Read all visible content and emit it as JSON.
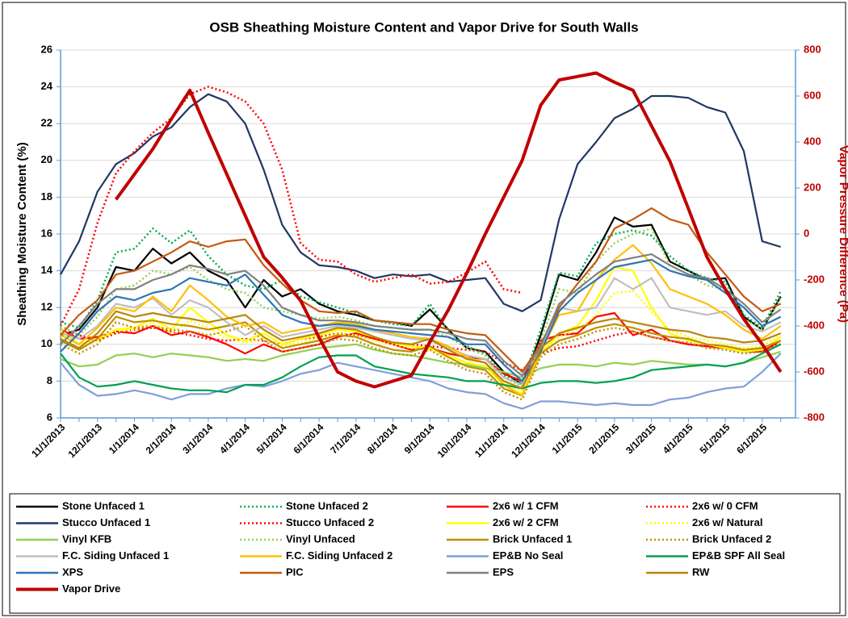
{
  "chart_data": {
    "type": "line",
    "title": "OSB Sheathing Moisture Content and Vapor Drive for South Walls",
    "y_label": "Sheathing Moisture Content (%)",
    "y2_label": "Vapor Pressure Difference (Pa)",
    "categories": [
      "11/1/2013",
      null,
      "12/1/2013",
      null,
      "1/1/2014",
      null,
      "2/1/2014",
      null,
      "3/1/2014",
      null,
      "4/1/2014",
      null,
      "5/1/2014",
      null,
      "6/1/2014",
      null,
      "7/1/2014",
      null,
      "8/1/2014",
      null,
      "9/1/2014",
      null,
      "10/1/2014",
      null,
      "11/1/2014",
      null,
      "12/1/2014",
      null,
      "1/1/2015",
      null,
      "2/1/2015",
      null,
      "3/1/2015",
      null,
      "4/1/2015",
      null,
      "5/1/2015",
      null,
      "6/1/2015",
      null
    ],
    "ylim": [
      6,
      26
    ],
    "yticks": [
      6,
      8,
      10,
      12,
      14,
      16,
      18,
      20,
      22,
      24,
      26
    ],
    "y2lim": [
      -800,
      800
    ],
    "y2ticks": [
      -800,
      -600,
      -400,
      -200,
      0,
      200,
      400,
      600,
      800
    ],
    "grid": true,
    "legend": "bottom",
    "series": [
      {
        "name": "Stone Unfaced 1",
        "color": "#000000",
        "dash": false,
        "values": [
          10.5,
          10.8,
          12.0,
          14.2,
          14.0,
          15.2,
          14.4,
          15.0,
          14.0,
          13.5,
          12.0,
          13.5,
          12.6,
          13.0,
          12.2,
          11.8,
          11.6,
          11.3,
          11.2,
          11.0,
          11.9,
          10.8,
          9.8,
          9.6,
          8.5,
          7.8,
          10.5,
          13.8,
          13.5,
          15.0,
          16.9,
          16.4,
          16.5,
          14.5,
          14.0,
          13.5,
          13.6,
          11.5,
          10.8,
          12.6
        ]
      },
      {
        "name": "Stone Unfaced 2",
        "color": "#00b050",
        "dash": true,
        "values": [
          11.2,
          10.9,
          12.4,
          15.0,
          15.2,
          16.3,
          15.5,
          16.2,
          14.8,
          13.8,
          13.2,
          13.0,
          13.5,
          12.6,
          12.3,
          12.0,
          11.7,
          11.3,
          11.1,
          11.0,
          12.2,
          10.7,
          9.9,
          9.5,
          8.3,
          7.9,
          10.8,
          13.9,
          13.7,
          15.5,
          16.0,
          16.2,
          15.9,
          14.8,
          14.0,
          13.6,
          13.4,
          11.6,
          10.9,
          12.9
        ]
      },
      {
        "name": "2x6 w/ 1 CFM",
        "color": "#ff0000",
        "dash": false,
        "values": [
          10.8,
          10.3,
          10.4,
          10.7,
          10.6,
          11.0,
          10.5,
          10.7,
          10.4,
          10.0,
          9.5,
          10.0,
          9.6,
          9.8,
          10.0,
          10.4,
          10.6,
          10.3,
          10.0,
          9.7,
          9.8,
          9.5,
          9.3,
          9.2,
          8.4,
          8.0,
          10.2,
          10.5,
          10.6,
          11.5,
          11.7,
          10.5,
          10.8,
          10.2,
          10.0,
          9.9,
          9.8,
          9.6,
          9.6,
          10.2
        ]
      },
      {
        "name": "2x6 w/ 0 CFM",
        "color": "#ff0000",
        "dash": true,
        "values": [
          10.8,
          10.5,
          10.2,
          10.6,
          10.8,
          10.9,
          10.7,
          10.5,
          10.3,
          10.2,
          10.3,
          10.2,
          10.0,
          10.3,
          10.4,
          10.6,
          10.5,
          10.3,
          10.1,
          10.0,
          9.9,
          9.8,
          9.7,
          9.6,
          9.0,
          8.6,
          9.5,
          9.8,
          9.9,
          10.2,
          10.5,
          10.7,
          10.4,
          10.2,
          10.0,
          9.9,
          9.8,
          9.6,
          9.7,
          10.0
        ]
      },
      {
        "name": "Stucco Unfaced 1",
        "color": "#203864",
        "dash": false,
        "values": [
          13.8,
          15.6,
          18.3,
          19.8,
          20.4,
          21.3,
          21.8,
          22.9,
          23.6,
          23.2,
          22.0,
          19.5,
          16.5,
          15.0,
          14.3,
          14.2,
          14.0,
          13.6,
          13.8,
          13.7,
          13.8,
          13.4,
          13.5,
          13.6,
          12.2,
          11.8,
          12.4,
          16.8,
          19.8,
          21.0,
          22.3,
          22.8,
          23.5,
          23.5,
          23.4,
          22.9,
          22.6,
          20.5,
          15.6,
          15.3
        ]
      },
      {
        "name": "Stucco Unfaced 2",
        "color": "#ff0000",
        "dash": true,
        "values": [
          11.0,
          13.0,
          16.6,
          19.3,
          20.5,
          21.5,
          22.3,
          23.6,
          24.0,
          23.7,
          23.2,
          22.0,
          19.5,
          15.5,
          14.6,
          14.5,
          13.8,
          13.4,
          13.6,
          13.8,
          13.3,
          13.4,
          13.9,
          14.5,
          13.0,
          12.8,
          null,
          null,
          null,
          null,
          null,
          null,
          null,
          null,
          null,
          null,
          null,
          null,
          null,
          null
        ]
      },
      {
        "name": "2x6 w/ 2 CFM",
        "color": "#ffff00",
        "dash": false,
        "values": [
          10.8,
          10.0,
          10.3,
          10.8,
          10.9,
          11.4,
          10.8,
          12.0,
          11.2,
          10.5,
          10.2,
          10.6,
          10.0,
          10.3,
          10.5,
          10.8,
          10.7,
          10.4,
          10.1,
          9.9,
          9.8,
          9.4,
          9.0,
          8.8,
          7.8,
          7.3,
          9.5,
          10.6,
          11.0,
          12.4,
          14.2,
          14.0,
          12.0,
          10.6,
          10.2,
          10.0,
          9.8,
          9.6,
          9.7,
          10.4
        ]
      },
      {
        "name": "2x6 w/ Natural",
        "color": "#ffff00",
        "dash": true,
        "values": [
          10.7,
          10.0,
          10.2,
          10.7,
          10.8,
          11.2,
          10.6,
          11.3,
          10.9,
          10.3,
          10.1,
          10.3,
          9.9,
          10.1,
          10.3,
          10.6,
          10.5,
          10.2,
          10.0,
          9.8,
          9.7,
          9.3,
          9.0,
          8.8,
          7.9,
          7.5,
          9.6,
          10.4,
          10.8,
          11.6,
          12.8,
          12.9,
          11.8,
          10.8,
          10.4,
          10.2,
          10.0,
          9.8,
          9.9,
          10.5
        ]
      },
      {
        "name": "Vinyl KFB",
        "color": "#92d050",
        "dash": false,
        "values": [
          9.2,
          8.8,
          8.9,
          9.4,
          9.5,
          9.3,
          9.5,
          9.4,
          9.3,
          9.1,
          9.2,
          9.1,
          9.4,
          9.6,
          9.8,
          9.9,
          10.0,
          9.7,
          9.5,
          9.4,
          9.2,
          9.0,
          8.9,
          8.7,
          8.5,
          8.2,
          8.7,
          8.9,
          8.9,
          8.8,
          9.0,
          8.9,
          9.1,
          9.0,
          8.9,
          8.9,
          8.8,
          9.0,
          9.3,
          9.6
        ]
      },
      {
        "name": "Vinyl Unfaced",
        "color": "#92d050",
        "dash": true,
        "values": [
          11.0,
          10.5,
          11.5,
          13.0,
          13.2,
          14.0,
          13.8,
          14.2,
          13.5,
          13.0,
          12.8,
          12.0,
          11.8,
          11.6,
          11.4,
          11.5,
          11.3,
          11.0,
          10.9,
          10.8,
          10.8,
          10.4,
          9.8,
          9.4,
          8.2,
          7.7,
          10.2,
          13.0,
          12.8,
          14.5,
          15.5,
          16.0,
          16.3,
          14.3,
          13.8,
          13.2,
          13.0,
          11.4,
          10.8,
          12.5
        ]
      },
      {
        "name": "Brick Unfaced 1",
        "color": "#bf9000",
        "dash": false,
        "values": [
          10.2,
          9.7,
          10.3,
          11.5,
          11.2,
          11.3,
          11.1,
          11.0,
          10.8,
          11.0,
          11.2,
          10.4,
          9.8,
          10.0,
          10.2,
          10.5,
          10.4,
          10.0,
          9.7,
          9.6,
          9.9,
          9.3,
          8.8,
          8.6,
          7.6,
          7.2,
          9.5,
          10.2,
          10.5,
          10.9,
          11.1,
          10.9,
          10.6,
          10.4,
          10.3,
          10.0,
          9.9,
          9.7,
          9.8,
          10.2
        ]
      },
      {
        "name": "Brick Unfaced 2",
        "color": "#bf9000",
        "dash": true,
        "values": [
          10.0,
          9.5,
          10.0,
          11.2,
          10.9,
          11.0,
          10.8,
          10.7,
          10.5,
          10.7,
          11.0,
          10.2,
          9.6,
          9.8,
          10.0,
          10.3,
          10.2,
          9.8,
          9.5,
          9.4,
          9.7,
          9.1,
          8.6,
          8.4,
          7.4,
          7.0,
          9.3,
          10.0,
          10.3,
          10.7,
          10.9,
          10.7,
          10.4,
          10.2,
          10.1,
          9.8,
          9.7,
          9.5,
          9.6,
          10.0
        ]
      },
      {
        "name": "F.C. Siding Unfaced 1",
        "color": "#bfbfbf",
        "dash": false,
        "values": [
          10.6,
          10.3,
          11.0,
          12.2,
          12.0,
          12.5,
          11.6,
          12.4,
          12.0,
          11.2,
          10.5,
          11.0,
          10.4,
          10.6,
          10.8,
          11.0,
          10.9,
          10.7,
          10.5,
          10.3,
          10.2,
          9.8,
          9.4,
          9.2,
          8.2,
          7.8,
          9.8,
          12.0,
          11.8,
          12.0,
          13.6,
          13.0,
          13.6,
          12.0,
          11.8,
          11.6,
          11.8,
          11.0,
          10.7,
          11.2
        ]
      },
      {
        "name": "F.C. Siding Unfaced 2",
        "color": "#ffc000",
        "dash": false,
        "values": [
          10.5,
          10.0,
          10.9,
          12.0,
          11.8,
          12.6,
          11.8,
          13.2,
          12.4,
          11.5,
          11.0,
          11.2,
          10.6,
          10.8,
          11.0,
          11.2,
          11.1,
          10.8,
          10.6,
          10.4,
          10.3,
          9.9,
          9.3,
          9.0,
          7.8,
          7.2,
          9.6,
          11.6,
          11.8,
          13.5,
          14.6,
          15.4,
          14.4,
          13.0,
          12.6,
          12.2,
          11.6,
          10.8,
          10.3,
          11.0
        ]
      },
      {
        "name": "EP&B No Seal",
        "color": "#7f9fdb",
        "dash": false,
        "values": [
          9.0,
          7.8,
          7.2,
          7.3,
          7.5,
          7.3,
          7.0,
          7.3,
          7.3,
          7.6,
          7.8,
          7.7,
          8.0,
          8.4,
          8.6,
          9.0,
          8.8,
          8.6,
          8.4,
          8.2,
          8.0,
          7.6,
          7.4,
          7.3,
          6.8,
          6.5,
          6.9,
          6.9,
          6.8,
          6.7,
          6.8,
          6.7,
          6.7,
          7.0,
          7.1,
          7.4,
          7.6,
          7.7,
          8.5,
          9.5
        ]
      },
      {
        "name": "EP&B SPF All Seal",
        "color": "#00a050",
        "dash": false,
        "values": [
          9.5,
          8.2,
          7.7,
          7.8,
          8.0,
          7.8,
          7.6,
          7.5,
          7.5,
          7.4,
          7.8,
          7.8,
          8.2,
          8.8,
          9.3,
          9.4,
          9.4,
          8.8,
          8.6,
          8.4,
          8.3,
          8.2,
          8.0,
          8.0,
          7.8,
          7.6,
          7.9,
          8.0,
          8.0,
          7.9,
          8.0,
          8.2,
          8.6,
          8.7,
          8.8,
          8.9,
          8.8,
          9.0,
          9.5,
          10.0
        ]
      },
      {
        "name": "XPS",
        "color": "#2e75b6",
        "dash": false,
        "values": [
          9.6,
          10.6,
          11.8,
          12.6,
          12.4,
          12.8,
          13.0,
          13.6,
          13.4,
          13.2,
          13.8,
          12.7,
          11.6,
          11.2,
          11.0,
          11.1,
          11.0,
          10.8,
          10.7,
          10.6,
          10.5,
          10.4,
          10.0,
          10.0,
          8.9,
          8.0,
          9.6,
          11.8,
          12.8,
          13.5,
          14.2,
          14.4,
          14.6,
          14.0,
          13.7,
          13.5,
          12.8,
          12.0,
          11.0,
          11.5
        ]
      },
      {
        "name": "PIC",
        "color": "#c55a11",
        "dash": false,
        "values": [
          10.5,
          11.6,
          12.4,
          13.8,
          14.0,
          14.5,
          15.0,
          15.6,
          15.3,
          15.6,
          15.7,
          14.3,
          13.3,
          12.4,
          11.8,
          11.7,
          11.8,
          11.3,
          11.2,
          11.1,
          11.1,
          10.8,
          10.6,
          10.5,
          9.5,
          8.5,
          10.0,
          12.0,
          13.3,
          14.5,
          16.3,
          16.8,
          17.4,
          16.8,
          16.5,
          15.0,
          13.8,
          12.6,
          11.8,
          12.2
        ]
      },
      {
        "name": "EPS",
        "color": "#808080",
        "dash": false,
        "values": [
          10.0,
          11.0,
          12.2,
          13.0,
          13.0,
          13.5,
          13.8,
          14.3,
          14.1,
          13.8,
          14.0,
          13.2,
          12.0,
          11.6,
          11.3,
          11.3,
          11.2,
          11.0,
          10.9,
          10.8,
          10.8,
          10.6,
          10.3,
          10.2,
          9.1,
          8.3,
          9.9,
          12.2,
          13.0,
          13.8,
          14.5,
          14.7,
          14.9,
          14.3,
          13.8,
          13.6,
          13.0,
          12.2,
          11.2,
          11.9
        ]
      },
      {
        "name": "RW",
        "color": "#b8860b",
        "dash": false,
        "values": [
          10.3,
          9.8,
          10.6,
          11.8,
          11.5,
          11.7,
          11.5,
          11.4,
          11.2,
          11.4,
          11.6,
          10.8,
          10.2,
          10.4,
          10.6,
          10.9,
          10.8,
          10.4,
          10.1,
          10.0,
          10.3,
          9.7,
          9.2,
          9.0,
          8.0,
          7.6,
          9.8,
          10.6,
          10.9,
          11.2,
          11.4,
          11.2,
          11.0,
          10.8,
          10.7,
          10.4,
          10.3,
          10.1,
          10.2,
          10.6
        ]
      },
      {
        "name": "Vapor Drive",
        "color": "#c00000",
        "dash": false,
        "axis": "y2",
        "values": [
          null,
          null,
          null,
          150,
          260,
          370,
          500,
          625,
          440,
          260,
          80,
          -100,
          -190,
          -290,
          -450,
          -600,
          -640,
          -665,
          -640,
          -615,
          -470,
          -330,
          -170,
          0,
          160,
          320,
          560,
          670,
          685,
          700,
          660,
          625,
          470,
          316,
          110,
          -100,
          -240,
          -370,
          -480,
          -600
        ]
      }
    ]
  }
}
